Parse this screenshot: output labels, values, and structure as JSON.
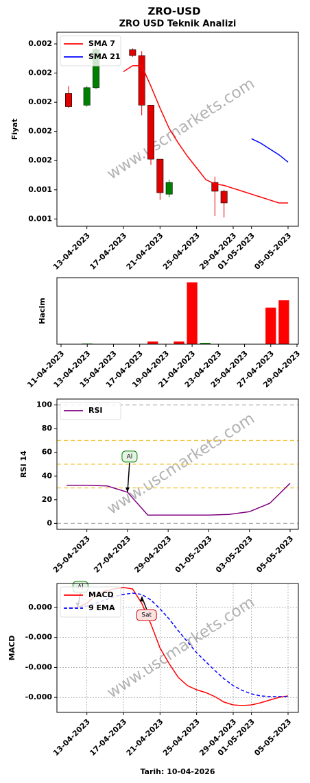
{
  "title": "ZRO-USD",
  "watermark": "www.uscmarkets.com",
  "chart_data": [
    {
      "type": "candlestick",
      "title": "ZRO USD Teknik Analizi",
      "ylabel": "Fiyat",
      "x": [
        "2023-04-11",
        "2023-04-13",
        "2023-04-14",
        "2023-04-18",
        "2023-04-19",
        "2023-04-20",
        "2023-04-21",
        "2023-04-22",
        "2023-04-27",
        "2023-04-28"
      ],
      "open": [
        0.00206,
        0.00198,
        0.0021,
        0.00236,
        0.00232,
        0.00198,
        0.00161,
        0.00137,
        0.00145,
        0.00139
      ],
      "high": [
        0.00211,
        0.00211,
        0.00238,
        0.00237,
        0.00235,
        0.00198,
        0.00161,
        0.00147,
        0.00149,
        0.0014
      ],
      "low": [
        0.00196,
        0.00197,
        0.00209,
        0.00231,
        0.00191,
        0.00157,
        0.00133,
        0.00135,
        0.00122,
        0.00121
      ],
      "close": [
        0.00197,
        0.0021,
        0.00236,
        0.00232,
        0.00198,
        0.00161,
        0.00138,
        0.00145,
        0.00139,
        0.00131
      ],
      "up_color": "#008000",
      "down_color": "#e00000",
      "series": [
        {
          "name": "SMA 7",
          "color": "#ff0000",
          "x": [
            "2023-04-17",
            "2023-04-18",
            "2023-04-19",
            "2023-04-20",
            "2023-04-21",
            "2023-04-22",
            "2023-04-23",
            "2023-04-24",
            "2023-04-25",
            "2023-04-26",
            "2023-04-27",
            "2023-04-28",
            "2023-04-29",
            "2023-04-30",
            "2023-05-01",
            "2023-05-02",
            "2023-05-03",
            "2023-05-04",
            "2023-05-05"
          ],
          "values": [
            0.00221,
            0.00225,
            0.00225,
            0.00211,
            0.00196,
            0.00182,
            0.00172,
            0.00163,
            0.00155,
            0.00147,
            0.00144,
            0.00143,
            0.00141,
            0.00139,
            0.00137,
            0.00135,
            0.00133,
            0.00131,
            0.00131
          ]
        },
        {
          "name": "SMA 21",
          "color": "#0000ff",
          "x": [
            "2023-05-01",
            "2023-05-02",
            "2023-05-03",
            "2023-05-04",
            "2023-05-05"
          ],
          "values": [
            0.00175,
            0.00172,
            0.00168,
            0.00164,
            0.00159
          ]
        }
      ],
      "legend": "upper left",
      "xlim": [
        "2023-04-11",
        "2023-05-05"
      ],
      "xticks": [
        {
          "value": "2023-04-13",
          "label": "13-04-2023"
        },
        {
          "value": "2023-04-17",
          "label": "17-04-2023"
        },
        {
          "value": "2023-04-21",
          "label": "21-04-2023"
        },
        {
          "value": "2023-04-25",
          "label": "25-04-2023"
        },
        {
          "value": "2023-04-29",
          "label": "29-04-2023"
        },
        {
          "value": "2023-05-01",
          "label": "01-05-2023"
        },
        {
          "value": "2023-05-05",
          "label": "05-05-2023"
        }
      ],
      "ylim": [
        0.00115,
        0.00248
      ],
      "yticks": [
        {
          "value": 0.0012,
          "label": "0.001"
        },
        {
          "value": 0.0014,
          "label": "0.001"
        },
        {
          "value": 0.0016,
          "label": "0.002"
        },
        {
          "value": 0.0018,
          "label": "0.002"
        },
        {
          "value": 0.002,
          "label": "0.002"
        },
        {
          "value": 0.0022,
          "label": "0.002"
        },
        {
          "value": 0.0024,
          "label": "0.002"
        }
      ]
    },
    {
      "type": "bar",
      "ylabel": "Hacim",
      "x": [
        "2023-04-13",
        "2023-04-18",
        "2023-04-20",
        "2023-04-21",
        "2023-04-22",
        "2023-04-27",
        "2023-04-28"
      ],
      "values": [
        1,
        4,
        4,
        93,
        2,
        55,
        66
      ],
      "colors": [
        "#008000",
        "#ff0000",
        "#ff0000",
        "#ff0000",
        "#008000",
        "#ff0000",
        "#ff0000"
      ],
      "xlim": [
        "2023-04-11",
        "2023-04-29"
      ],
      "xticks": [
        {
          "value": "2023-04-11",
          "label": "11-04-2023"
        },
        {
          "value": "2023-04-13",
          "label": "13-04-2023"
        },
        {
          "value": "2023-04-15",
          "label": "15-04-2023"
        },
        {
          "value": "2023-04-17",
          "label": "17-04-2023"
        },
        {
          "value": "2023-04-19",
          "label": "19-04-2023"
        },
        {
          "value": "2023-04-21",
          "label": "21-04-2023"
        },
        {
          "value": "2023-04-23",
          "label": "23-04-2023"
        },
        {
          "value": "2023-04-25",
          "label": "25-04-2023"
        },
        {
          "value": "2023-04-27",
          "label": "27-04-2023"
        },
        {
          "value": "2023-04-29",
          "label": "29-04-2023"
        }
      ],
      "ylim": [
        0,
        100
      ]
    },
    {
      "type": "line",
      "ylabel": "RSI 14",
      "x": [
        "2023-04-24",
        "2023-04-25",
        "2023-04-26",
        "2023-04-27",
        "2023-04-28",
        "2023-04-29",
        "2023-04-30",
        "2023-05-01",
        "2023-05-02",
        "2023-05-03",
        "2023-05-04",
        "2023-05-05"
      ],
      "series": [
        {
          "name": "RSI",
          "color": "#800080",
          "values": [
            32.2,
            32.2,
            31.6,
            26.3,
            7.0,
            7.0,
            7.0,
            7.0,
            7.6,
            9.9,
            17.0,
            33.9
          ]
        }
      ],
      "hlines": [
        {
          "value": 0,
          "color": "#b0b0b0"
        },
        {
          "value": 100,
          "color": "#b0b0b0"
        },
        {
          "value": 30,
          "color": "#f5c842"
        },
        {
          "value": 50,
          "color": "#f5c842"
        },
        {
          "value": 70,
          "color": "#f5c842"
        }
      ],
      "annotations": [
        {
          "text": "Al",
          "x": "2023-04-27",
          "y": 26.3,
          "color": "#008000"
        }
      ],
      "legend": "upper left",
      "xlim": [
        "2023-04-24",
        "2023-05-05"
      ],
      "xticks": [
        {
          "value": "2023-04-25",
          "label": "25-04-2023"
        },
        {
          "value": "2023-04-27",
          "label": "27-04-2023"
        },
        {
          "value": "2023-04-29",
          "label": "29-04-2023"
        },
        {
          "value": "2023-05-01",
          "label": "01-05-2023"
        },
        {
          "value": "2023-05-03",
          "label": "03-05-2023"
        },
        {
          "value": "2023-05-05",
          "label": "05-05-2023"
        }
      ],
      "ylim": [
        -5,
        105
      ],
      "yticks": [
        0,
        20,
        40,
        60,
        80,
        100
      ]
    },
    {
      "type": "line",
      "ylabel": "MACD",
      "xlabel": "Tarih: 10-04-2026",
      "x": [
        "2023-04-11",
        "2023-04-12",
        "2023-04-13",
        "2023-04-14",
        "2023-04-15",
        "2023-04-16",
        "2023-04-17",
        "2023-04-18",
        "2023-04-19",
        "2023-04-20",
        "2023-04-21",
        "2023-04-22",
        "2023-04-23",
        "2023-04-24",
        "2023-04-25",
        "2023-04-26",
        "2023-04-27",
        "2023-04-28",
        "2023-04-29",
        "2023-04-30",
        "2023-05-01",
        "2023-05-02",
        "2023-05-03",
        "2023-05-04",
        "2023-05-05"
      ],
      "series": [
        {
          "name": "MACD",
          "color": "#ff0000",
          "values": [
            0,
            0,
            6.9e-06,
            2.06e-05,
            2.75e-05,
            3.09e-05,
            3.32e-05,
            3.09e-05,
            6.9e-06,
            -2.75e-05,
            -6.75e-05,
            -9.38e-05,
            -0.0001167,
            -0.0001304,
            -0.0001373,
            -0.0001419,
            -0.0001487,
            -0.0001579,
            -0.0001625,
            -0.0001636,
            -0.0001625,
            -0.000159,
            -0.0001544,
            -0.0001499,
            -0.0001476
          ]
        },
        {
          "name": "9 EMA",
          "color": "#0000ff",
          "dashed": true,
          "values": [
            0,
            0,
            2.3e-06,
            6.9e-06,
            1.26e-05,
            1.83e-05,
            2.17e-05,
            2.4e-05,
            2.17e-05,
            1.26e-05,
            -2.3e-06,
            -1.94e-05,
            -3.89e-05,
            -5.72e-05,
            -7.55e-05,
            -9.04e-05,
            -0.0001052,
            -0.000119,
            -0.0001304,
            -0.0001384,
            -0.0001441,
            -0.0001476,
            -0.0001487,
            -0.0001487,
            -0.0001487
          ]
        }
      ],
      "annotations": [
        {
          "text": "Al",
          "x": "2023-04-12",
          "y": 0,
          "color": "#008000"
        },
        {
          "text": "Sat",
          "x": "2023-04-19",
          "y": 1.8e-05,
          "color": "#d00000"
        }
      ],
      "legend": "upper left",
      "grid": true,
      "xlim": [
        "2023-04-11",
        "2023-05-05"
      ],
      "xticks": [
        {
          "value": "2023-04-13",
          "label": "13-04-2023"
        },
        {
          "value": "2023-04-17",
          "label": "17-04-2023"
        },
        {
          "value": "2023-04-21",
          "label": "21-04-2023"
        },
        {
          "value": "2023-04-25",
          "label": "25-04-2023"
        },
        {
          "value": "2023-04-29",
          "label": "29-04-2023"
        },
        {
          "value": "2023-05-01",
          "label": "01-05-2023"
        },
        {
          "value": "2023-05-05",
          "label": "05-05-2023"
        }
      ],
      "ylim": [
        -0.000175,
        4e-05
      ],
      "yticks": [
        {
          "value": 0,
          "label": "0.000"
        },
        {
          "value": -5e-05,
          "label": "-0.000"
        },
        {
          "value": -0.0001,
          "label": "-0.000"
        },
        {
          "value": -0.00015,
          "label": "-0.000"
        }
      ]
    }
  ]
}
